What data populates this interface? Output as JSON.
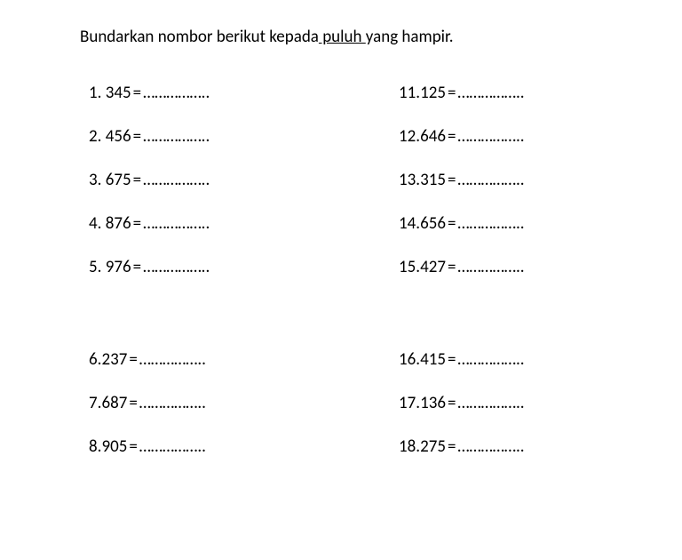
{
  "instruction": {
    "prefix": "Bundarkan nombor berikut kepada",
    "underlined": " puluh ",
    "suffix": "yang hampir."
  },
  "dots": "……………..",
  "left": [
    {
      "n": "1.",
      "v": "345",
      "sep": "  =  "
    },
    {
      "n": "2.",
      "v": "456",
      "sep": " = "
    },
    {
      "n": "3.",
      "v": "675",
      "sep": "  =  "
    },
    {
      "n": "4.",
      "v": "876",
      "sep": "  =  "
    },
    {
      "n": "5.",
      "v": "976",
      "sep": "  =  "
    }
  ],
  "left2": [
    {
      "n": "6.  ",
      "v": "237",
      "sep": "   =  "
    },
    {
      "n": "7.  ",
      "v": "687",
      "sep": " = "
    },
    {
      "n": "8.  ",
      "v": "905",
      "sep": "  =  "
    }
  ],
  "right": [
    {
      "n": "11.  ",
      "v": "125",
      "sep": "  =  "
    },
    {
      "n": "12.  ",
      "v": "646",
      "sep": " = "
    },
    {
      "n": "13.  ",
      "v": "315",
      "sep": "  =  "
    },
    {
      "n": "14.  ",
      "v": "656",
      "sep": "  =  "
    },
    {
      "n": "15.",
      "v": " 427",
      "sep": "  =  "
    }
  ],
  "right2": [
    {
      "n": "16.  ",
      "v": "415",
      "sep": "  =  "
    },
    {
      "n": "17.  ",
      "v": "136",
      "sep": " = "
    },
    {
      "n": "18.  ",
      "v": "275",
      "sep": "  =  "
    }
  ]
}
